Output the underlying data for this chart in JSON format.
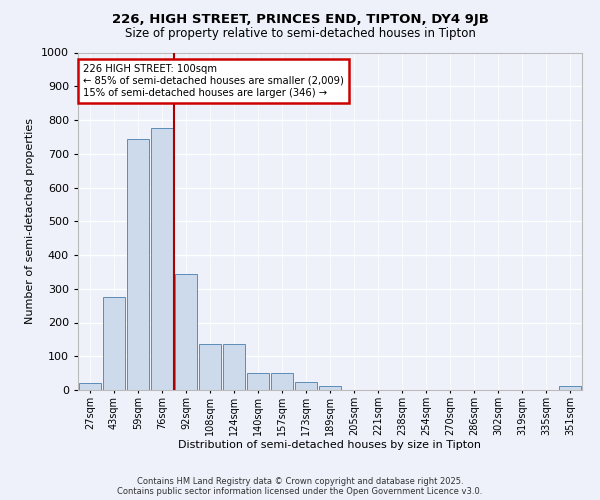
{
  "title1": "226, HIGH STREET, PRINCES END, TIPTON, DY4 9JB",
  "title2": "Size of property relative to semi-detached houses in Tipton",
  "xlabel": "Distribution of semi-detached houses by size in Tipton",
  "ylabel": "Number of semi-detached properties",
  "categories": [
    "27sqm",
    "43sqm",
    "59sqm",
    "76sqm",
    "92sqm",
    "108sqm",
    "124sqm",
    "140sqm",
    "157sqm",
    "173sqm",
    "189sqm",
    "205sqm",
    "221sqm",
    "238sqm",
    "254sqm",
    "270sqm",
    "286sqm",
    "302sqm",
    "319sqm",
    "335sqm",
    "351sqm"
  ],
  "values": [
    20,
    275,
    745,
    775,
    345,
    135,
    135,
    50,
    50,
    25,
    12,
    0,
    0,
    0,
    0,
    0,
    0,
    0,
    0,
    0,
    12
  ],
  "bar_color": "#ccdaeb",
  "bar_edge_color": "#5b8db8",
  "vline_color": "#aa0000",
  "vline_x": 3.5,
  "annotation_title": "226 HIGH STREET: 100sqm",
  "annotation_line1": "← 85% of semi-detached houses are smaller (2,009)",
  "annotation_line2": "15% of semi-detached houses are larger (346) →",
  "annotation_box_edgecolor": "#cc0000",
  "ylim": [
    0,
    1000
  ],
  "yticks": [
    0,
    100,
    200,
    300,
    400,
    500,
    600,
    700,
    800,
    900,
    1000
  ],
  "background_color": "#eef1fa",
  "plot_bg_color": "#eef1fa",
  "grid_color": "#ffffff",
  "footer1": "Contains HM Land Registry data © Crown copyright and database right 2025.",
  "footer2": "Contains public sector information licensed under the Open Government Licence v3.0."
}
